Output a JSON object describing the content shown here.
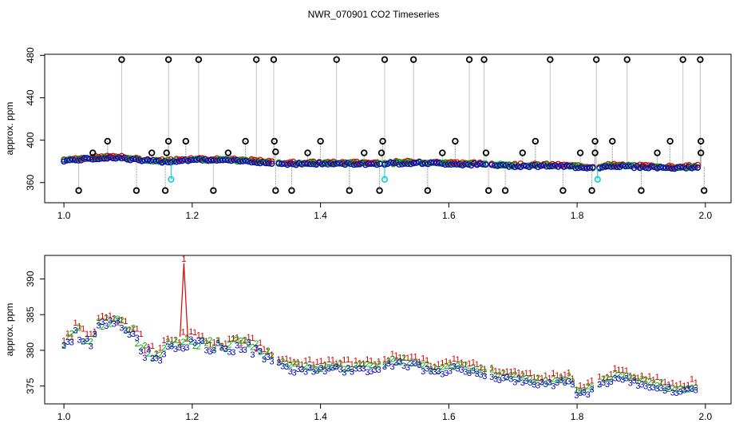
{
  "page_title": "NWR_070901  CO2 Timeseries",
  "colors": {
    "outlier": "#000000",
    "flagged": "#00cccc",
    "series1": "#dd0000",
    "series2": "#00aa00",
    "series3": "#0000cc",
    "droplines": "#888888",
    "connectors": "#555555"
  },
  "chart_data": [
    {
      "id": "top",
      "type": "scatter",
      "title": "",
      "xlabel": "",
      "ylabel": "approx. ppm",
      "xlim": [
        0.97,
        2.04
      ],
      "ylim": [
        341,
        481
      ],
      "x_ticks": [
        1.0,
        1.2,
        1.4,
        1.6,
        1.8,
        2.0
      ],
      "x_tick_labels": [
        "1.0",
        "1.2",
        "1.4",
        "1.6",
        "1.8",
        "2.0"
      ],
      "y_ticks": [
        360,
        400,
        440,
        480
      ],
      "y_tick_labels": [
        "360",
        "400",
        "440",
        "480"
      ],
      "baseline_series": [
        {
          "x": 1.0,
          "y": 381
        },
        {
          "x": 1.05,
          "y": 383
        },
        {
          "x": 1.08,
          "y": 384
        },
        {
          "x": 1.12,
          "y": 381
        },
        {
          "x": 1.16,
          "y": 380
        },
        {
          "x": 1.2,
          "y": 382
        },
        {
          "x": 1.25,
          "y": 381
        },
        {
          "x": 1.3,
          "y": 380
        },
        {
          "x": 1.33,
          "y": 378
        },
        {
          "x": 1.4,
          "y": 378
        },
        {
          "x": 1.5,
          "y": 378
        },
        {
          "x": 1.55,
          "y": 379
        },
        {
          "x": 1.6,
          "y": 378
        },
        {
          "x": 1.66,
          "y": 377
        },
        {
          "x": 1.7,
          "y": 376
        },
        {
          "x": 1.76,
          "y": 376
        },
        {
          "x": 1.8,
          "y": 375
        },
        {
          "x": 1.83,
          "y": 374
        },
        {
          "x": 1.85,
          "y": 376
        },
        {
          "x": 1.9,
          "y": 375
        },
        {
          "x": 1.95,
          "y": 374
        },
        {
          "x": 1.99,
          "y": 375
        }
      ],
      "outliers_high": [
        1.09,
        1.163,
        1.21,
        1.3,
        1.327,
        1.425,
        1.5,
        1.545,
        1.632,
        1.655,
        1.758,
        1.83,
        1.878,
        1.965,
        1.992
      ],
      "outliers_low": [
        1.023,
        1.113,
        1.158,
        1.233,
        1.33,
        1.355,
        1.445,
        1.492,
        1.567,
        1.662,
        1.688,
        1.778,
        1.823,
        1.9,
        1.998
      ],
      "outliers_mid": [
        {
          "x": 1.045,
          "y": 388
        },
        {
          "x": 1.068,
          "y": 399
        },
        {
          "x": 1.137,
          "y": 388
        },
        {
          "x": 1.16,
          "y": 388
        },
        {
          "x": 1.163,
          "y": 399
        },
        {
          "x": 1.19,
          "y": 399
        },
        {
          "x": 1.256,
          "y": 388
        },
        {
          "x": 1.283,
          "y": 399
        },
        {
          "x": 1.328,
          "y": 399
        },
        {
          "x": 1.33,
          "y": 389
        },
        {
          "x": 1.38,
          "y": 388
        },
        {
          "x": 1.4,
          "y": 399
        },
        {
          "x": 1.468,
          "y": 388
        },
        {
          "x": 1.495,
          "y": 388
        },
        {
          "x": 1.497,
          "y": 399
        },
        {
          "x": 1.59,
          "y": 388
        },
        {
          "x": 1.61,
          "y": 399
        },
        {
          "x": 1.658,
          "y": 388
        },
        {
          "x": 1.715,
          "y": 388
        },
        {
          "x": 1.735,
          "y": 399
        },
        {
          "x": 1.805,
          "y": 388
        },
        {
          "x": 1.828,
          "y": 399
        },
        {
          "x": 1.828,
          "y": 388
        },
        {
          "x": 1.855,
          "y": 399
        },
        {
          "x": 1.925,
          "y": 388
        },
        {
          "x": 1.945,
          "y": 399
        },
        {
          "x": 1.993,
          "y": 388
        },
        {
          "x": 1.993,
          "y": 399
        }
      ],
      "flagged_points": [
        {
          "x": 1.167,
          "y": 363
        },
        {
          "x": 1.5,
          "y": 363
        },
        {
          "x": 1.832,
          "y": 363
        }
      ]
    },
    {
      "id": "bottom",
      "type": "scatter",
      "title": "",
      "xlabel": "",
      "ylabel": "approx. ppm",
      "xlim": [
        0.97,
        2.04
      ],
      "ylim": [
        372.5,
        393.3
      ],
      "x_ticks": [
        1.0,
        1.2,
        1.4,
        1.6,
        1.8,
        2.0
      ],
      "x_tick_labels": [
        "1.0",
        "1.2",
        "1.4",
        "1.6",
        "1.8",
        "2.0"
      ],
      "y_ticks": [
        375,
        380,
        385,
        390
      ],
      "y_tick_labels": [
        "375",
        "380",
        "385",
        "390"
      ],
      "marker_labels": [
        "1",
        "2",
        "3"
      ],
      "baseline_series": [
        {
          "x": 1.0,
          "y": 380.5
        },
        {
          "x": 1.02,
          "y": 382.5
        },
        {
          "x": 1.04,
          "y": 381
        },
        {
          "x": 1.055,
          "y": 383.5
        },
        {
          "x": 1.075,
          "y": 384
        },
        {
          "x": 1.09,
          "y": 383.5
        },
        {
          "x": 1.11,
          "y": 382
        },
        {
          "x": 1.125,
          "y": 380
        },
        {
          "x": 1.145,
          "y": 379
        },
        {
          "x": 1.165,
          "y": 381
        },
        {
          "x": 1.185,
          "y": 381
        },
        {
          "x": 1.21,
          "y": 381
        },
        {
          "x": 1.23,
          "y": 380.5
        },
        {
          "x": 1.26,
          "y": 380.5
        },
        {
          "x": 1.28,
          "y": 381
        },
        {
          "x": 1.3,
          "y": 380
        },
        {
          "x": 1.33,
          "y": 378.5
        },
        {
          "x": 1.35,
          "y": 377.5
        },
        {
          "x": 1.4,
          "y": 377.5
        },
        {
          "x": 1.45,
          "y": 377.5
        },
        {
          "x": 1.49,
          "y": 377.5
        },
        {
          "x": 1.5,
          "y": 378
        },
        {
          "x": 1.52,
          "y": 378.5
        },
        {
          "x": 1.55,
          "y": 378
        },
        {
          "x": 1.58,
          "y": 377
        },
        {
          "x": 1.61,
          "y": 377.7
        },
        {
          "x": 1.65,
          "y": 377
        },
        {
          "x": 1.7,
          "y": 376
        },
        {
          "x": 1.75,
          "y": 375.5
        },
        {
          "x": 1.79,
          "y": 375.8
        },
        {
          "x": 1.8,
          "y": 373.8
        },
        {
          "x": 1.82,
          "y": 374.5
        },
        {
          "x": 1.84,
          "y": 375.5
        },
        {
          "x": 1.86,
          "y": 376.3
        },
        {
          "x": 1.9,
          "y": 375.5
        },
        {
          "x": 1.93,
          "y": 375
        },
        {
          "x": 1.96,
          "y": 374.3
        },
        {
          "x": 1.99,
          "y": 375
        }
      ],
      "series_offsets": [
        {
          "name": "1",
          "offset": 0.9
        },
        {
          "name": "2",
          "offset": 0.3
        },
        {
          "name": "3",
          "offset": -0.2
        }
      ],
      "spike": {
        "x": 1.187,
        "peak": 392.2,
        "series": "1"
      }
    }
  ]
}
